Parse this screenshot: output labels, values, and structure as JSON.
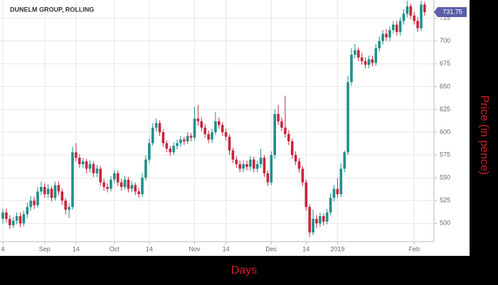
{
  "chart_data": {
    "type": "candlestick",
    "title": "DUNELM GROUP, ROLLING",
    "x_label": "Days",
    "y_label": "Price (in pence)",
    "categories": [
      "4",
      null,
      null,
      null,
      null,
      null,
      null,
      null,
      null,
      null,
      null,
      null,
      "Sep",
      null,
      null,
      null,
      null,
      null,
      null,
      null,
      null,
      "14",
      null,
      null,
      null,
      null,
      null,
      null,
      null,
      null,
      null,
      null,
      "Oct",
      null,
      null,
      null,
      null,
      null,
      null,
      null,
      null,
      null,
      "14",
      null,
      null,
      null,
      null,
      null,
      null,
      null,
      null,
      null,
      null,
      null,
      null,
      "Nov",
      null,
      null,
      null,
      null,
      null,
      null,
      null,
      null,
      "14",
      null,
      null,
      null,
      null,
      null,
      null,
      null,
      null,
      null,
      null,
      null,
      null,
      "Dec",
      null,
      null,
      null,
      null,
      null,
      null,
      null,
      null,
      null,
      "14",
      null,
      null,
      null,
      null,
      null,
      null,
      null,
      null,
      "2019",
      null,
      null,
      null,
      null,
      null,
      null,
      null,
      null,
      null,
      null,
      null,
      null,
      null,
      null,
      null,
      null,
      null,
      null,
      null,
      null,
      null,
      "Feb",
      null,
      null,
      null
    ],
    "open": [
      505,
      512,
      505,
      498,
      503,
      508,
      500,
      510,
      518,
      525,
      520,
      535,
      540,
      532,
      538,
      528,
      542,
      535,
      525,
      515,
      518,
      578,
      572,
      565,
      568,
      560,
      565,
      555,
      560,
      545,
      540,
      538,
      548,
      555,
      545,
      540,
      548,
      538,
      542,
      535,
      532,
      550,
      570,
      588,
      605,
      610,
      600,
      588,
      582,
      578,
      585,
      588,
      592,
      590,
      596,
      594,
      615,
      612,
      605,
      598,
      592,
      600,
      612,
      608,
      600,
      595,
      580,
      570,
      565,
      560,
      565,
      562,
      570,
      560,
      565,
      572,
      555,
      545,
      575,
      620,
      612,
      605,
      598,
      590,
      575,
      568,
      560,
      545,
      518,
      490,
      505,
      500,
      508,
      502,
      512,
      528,
      538,
      532,
      560,
      578,
      655,
      685,
      690,
      682,
      678,
      674,
      680,
      676,
      692,
      700,
      708,
      704,
      712,
      718,
      710,
      722,
      730,
      738,
      728,
      722,
      714,
      740
    ],
    "high": [
      516,
      516,
      509,
      507,
      512,
      512,
      514,
      523,
      530,
      529,
      540,
      546,
      544,
      543,
      541,
      546,
      546,
      538,
      528,
      522,
      584,
      588,
      576,
      572,
      571,
      569,
      568,
      564,
      563,
      549,
      544,
      552,
      559,
      558,
      549,
      552,
      551,
      546,
      545,
      539,
      555,
      575,
      593,
      610,
      615,
      613,
      603,
      591,
      585,
      589,
      592,
      596,
      595,
      600,
      599,
      628,
      630,
      616,
      609,
      602,
      604,
      622,
      616,
      611,
      604,
      598,
      583,
      574,
      569,
      569,
      569,
      574,
      573,
      569,
      582,
      575,
      558,
      579,
      625,
      630,
      616,
      640,
      602,
      593,
      579,
      572,
      563,
      548,
      521,
      515,
      509,
      512,
      511,
      516,
      533,
      542,
      550,
      566,
      580,
      662,
      692,
      697,
      693,
      687,
      682,
      684,
      684,
      697,
      705,
      712,
      713,
      716,
      722,
      722,
      726,
      735,
      744,
      741,
      732,
      726,
      744,
      743
    ],
    "low": [
      500,
      501,
      494,
      495,
      499,
      496,
      497,
      506,
      514,
      516,
      517,
      531,
      528,
      528,
      524,
      525,
      531,
      520,
      510,
      506,
      515,
      568,
      561,
      561,
      555,
      556,
      551,
      551,
      541,
      536,
      534,
      535,
      544,
      541,
      536,
      537,
      534,
      534,
      531,
      528,
      529,
      547,
      566,
      585,
      601,
      596,
      584,
      578,
      574,
      575,
      581,
      584,
      586,
      587,
      590,
      591,
      607,
      601,
      594,
      588,
      588,
      597,
      604,
      596,
      591,
      575,
      566,
      561,
      556,
      556,
      558,
      558,
      556,
      556,
      561,
      551,
      541,
      542,
      571,
      608,
      601,
      594,
      586,
      571,
      564,
      556,
      541,
      514,
      485,
      487,
      495,
      496,
      498,
      499,
      509,
      524,
      528,
      529,
      556,
      575,
      651,
      681,
      678,
      674,
      670,
      670,
      672,
      673,
      688,
      696,
      700,
      700,
      708,
      706,
      706,
      718,
      726,
      724,
      718,
      710,
      711,
      728
    ],
    "close": [
      512,
      505,
      498,
      503,
      508,
      500,
      510,
      518,
      525,
      520,
      535,
      540,
      532,
      538,
      528,
      542,
      535,
      525,
      515,
      518,
      578,
      572,
      565,
      568,
      560,
      565,
      555,
      560,
      545,
      540,
      538,
      548,
      555,
      545,
      540,
      548,
      538,
      542,
      535,
      532,
      550,
      570,
      588,
      605,
      610,
      600,
      588,
      582,
      578,
      585,
      588,
      592,
      590,
      596,
      594,
      615,
      612,
      605,
      598,
      592,
      600,
      612,
      608,
      600,
      595,
      580,
      570,
      565,
      560,
      565,
      562,
      570,
      560,
      565,
      572,
      555,
      545,
      575,
      620,
      612,
      605,
      598,
      590,
      575,
      568,
      560,
      545,
      518,
      490,
      505,
      500,
      508,
      502,
      512,
      528,
      538,
      532,
      560,
      578,
      655,
      685,
      690,
      682,
      678,
      674,
      680,
      676,
      692,
      700,
      708,
      704,
      712,
      718,
      710,
      722,
      730,
      738,
      728,
      722,
      714,
      740,
      731.75
    ],
    "up_color": "#1f8f8c",
    "down_color": "#c9253b",
    "last_price": 731.75,
    "last_price_color": "#5c5fa8",
    "ylim": [
      480,
      745
    ],
    "yticks": [
      500,
      525,
      550,
      575,
      600,
      625,
      650,
      675,
      700,
      725
    ],
    "grid": true,
    "axis_label_color": "#d0202a"
  }
}
